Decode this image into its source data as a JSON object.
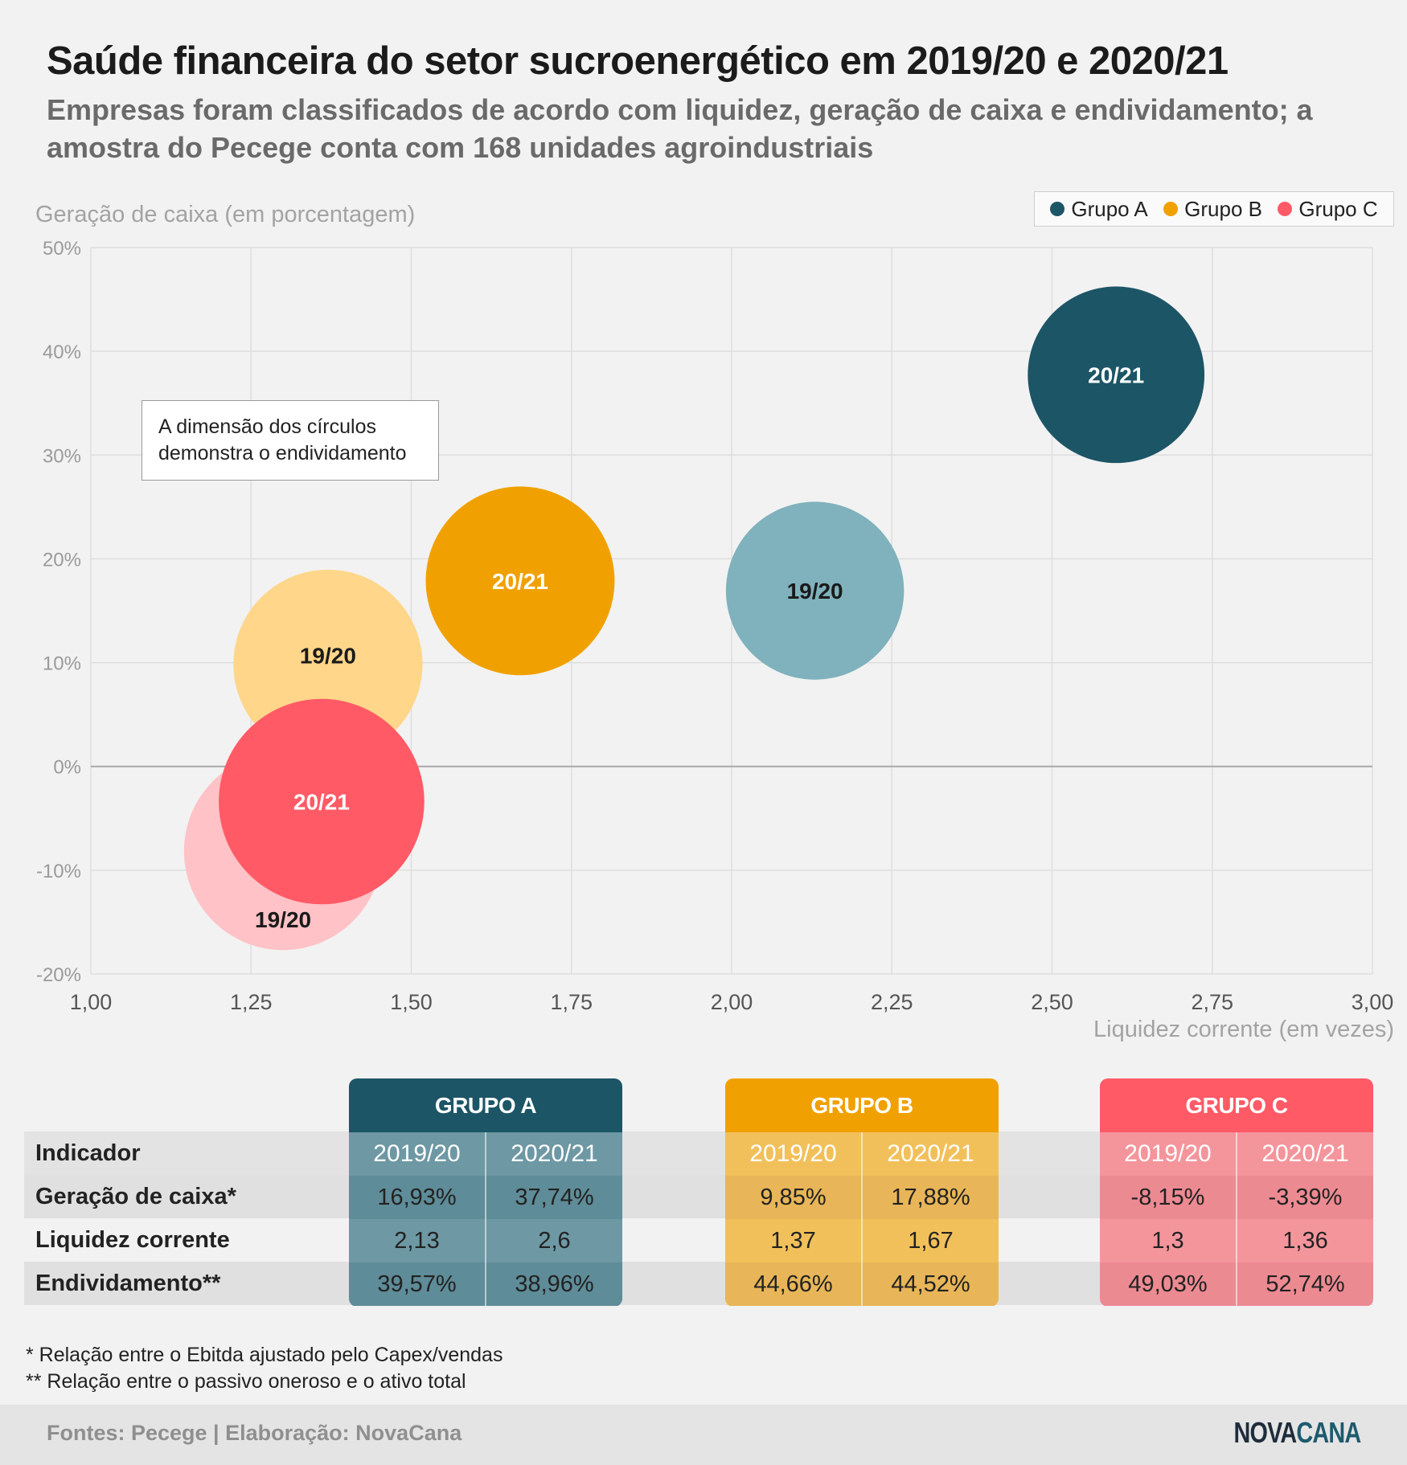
{
  "title": "Saúde financeira do setor sucroenergético em 2019/20 e 2020/21",
  "subtitle": "Empresas foram classificados de acordo com liquidez, geração de caixa e endividamento; a amostra do Pecege conta com 168 unidades agroindustriais",
  "colors": {
    "grupo_a": "#1c5566",
    "grupo_a_light": "#7fb2bc",
    "grupo_b": "#f0a100",
    "grupo_b_light": "#ffd68a",
    "grupo_c": "#ff5a66",
    "grupo_c_light": "#ffc2c6",
    "background": "#f2f2f2"
  },
  "chart_data": {
    "type": "bubble",
    "xlabel": "Liquidez corrente (em vezes)",
    "ylabel": "Geração de caixa (em porcentagem)",
    "xlim": [
      1.0,
      3.0
    ],
    "ylim": [
      -20,
      50
    ],
    "x_ticks": [
      "1,00",
      "1,25",
      "1,50",
      "1,75",
      "2,00",
      "2,25",
      "2,50",
      "2,75",
      "3,00"
    ],
    "y_ticks": [
      "50%",
      "40%",
      "30%",
      "20%",
      "10%",
      "0%",
      "-10%",
      "-20%"
    ],
    "grid": true,
    "legend_position": "top-right",
    "legend": [
      "Grupo A",
      "Grupo B",
      "Grupo C"
    ],
    "size_note": "A dimensão dos círculos demonstra o endividamento",
    "points": [
      {
        "group": "Grupo C",
        "period": "19/20",
        "x": 1.3,
        "y": -8.15,
        "size": 49.03
      },
      {
        "group": "Grupo B",
        "period": "19/20",
        "x": 1.37,
        "y": 9.85,
        "size": 44.66
      },
      {
        "group": "Grupo C",
        "period": "20/21",
        "x": 1.36,
        "y": -3.39,
        "size": 52.74
      },
      {
        "group": "Grupo B",
        "period": "20/21",
        "x": 1.67,
        "y": 17.88,
        "size": 44.52
      },
      {
        "group": "Grupo A",
        "period": "19/20",
        "x": 2.13,
        "y": 16.93,
        "size": 39.57
      },
      {
        "group": "Grupo A",
        "period": "20/21",
        "x": 2.6,
        "y": 37.74,
        "size": 38.96
      }
    ]
  },
  "table": {
    "indicator_header": "Indicador",
    "rows": [
      "Geração de caixa*",
      "Liquidez corrente",
      "Endividamento**"
    ],
    "groups": [
      {
        "name": "GRUPO A",
        "years": [
          "2019/20",
          "2020/21"
        ],
        "values": [
          [
            "16,93%",
            "37,74%"
          ],
          [
            "2,13",
            "2,6"
          ],
          [
            "39,57%",
            "38,96%"
          ]
        ]
      },
      {
        "name": "GRUPO B",
        "years": [
          "2019/20",
          "2020/21"
        ],
        "values": [
          [
            "9,85%",
            "17,88%"
          ],
          [
            "1,37",
            "1,67"
          ],
          [
            "44,66%",
            "44,52%"
          ]
        ]
      },
      {
        "name": "GRUPO C",
        "years": [
          "2019/20",
          "2020/21"
        ],
        "values": [
          [
            "-8,15%",
            "-3,39%"
          ],
          [
            "1,3",
            "1,36"
          ],
          [
            "49,03%",
            "52,74%"
          ]
        ]
      }
    ]
  },
  "notes": [
    "* Relação entre o Ebitda ajustado pelo Capex/vendas",
    "** Relação entre o passivo oneroso e o ativo total"
  ],
  "footer": {
    "source": "Fontes: Pecege | Elaboração: NovaCana",
    "logo_part1": "NOVA",
    "logo_part2": "CANA"
  }
}
